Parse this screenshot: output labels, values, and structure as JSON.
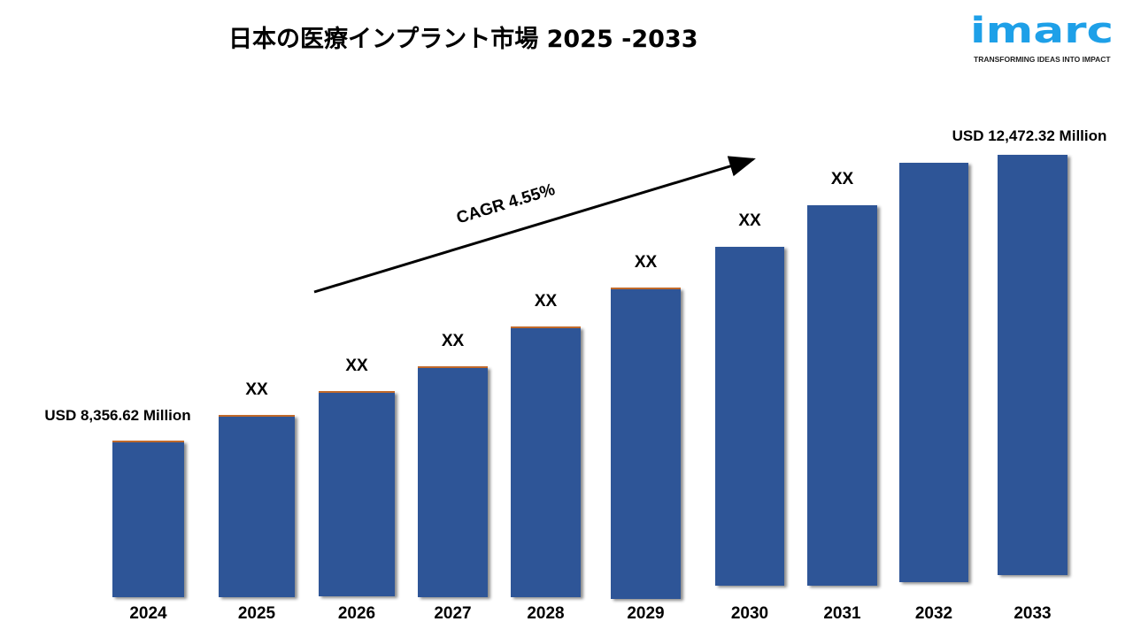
{
  "chart_data": {
    "type": "bar",
    "title": "日本の医療インプラント市場 2025 -2033",
    "categories": [
      "2024",
      "2025",
      "2026",
      "2027",
      "2028",
      "2029",
      "2030",
      "2031",
      "2032",
      "2033"
    ],
    "values": [
      8356.62,
      null,
      null,
      null,
      null,
      null,
      null,
      null,
      null,
      12472.32
    ],
    "data_labels": [
      "USD 8,356.62 Million",
      "XX",
      "XX",
      "XX",
      "XX",
      "XX",
      "XX",
      "XX",
      "",
      "USD 12,472.32 Million"
    ],
    "unit": "USD Million",
    "annotation": "CAGR 4.55%",
    "bar_color": "#2F5597",
    "accent_edge_color": "#C0692B",
    "grid": false,
    "legend": "none"
  },
  "logo": {
    "text": "imarc",
    "tagline": "TRANSFORMING IDEAS INTO IMPACT",
    "color": "#1EA0E8"
  }
}
